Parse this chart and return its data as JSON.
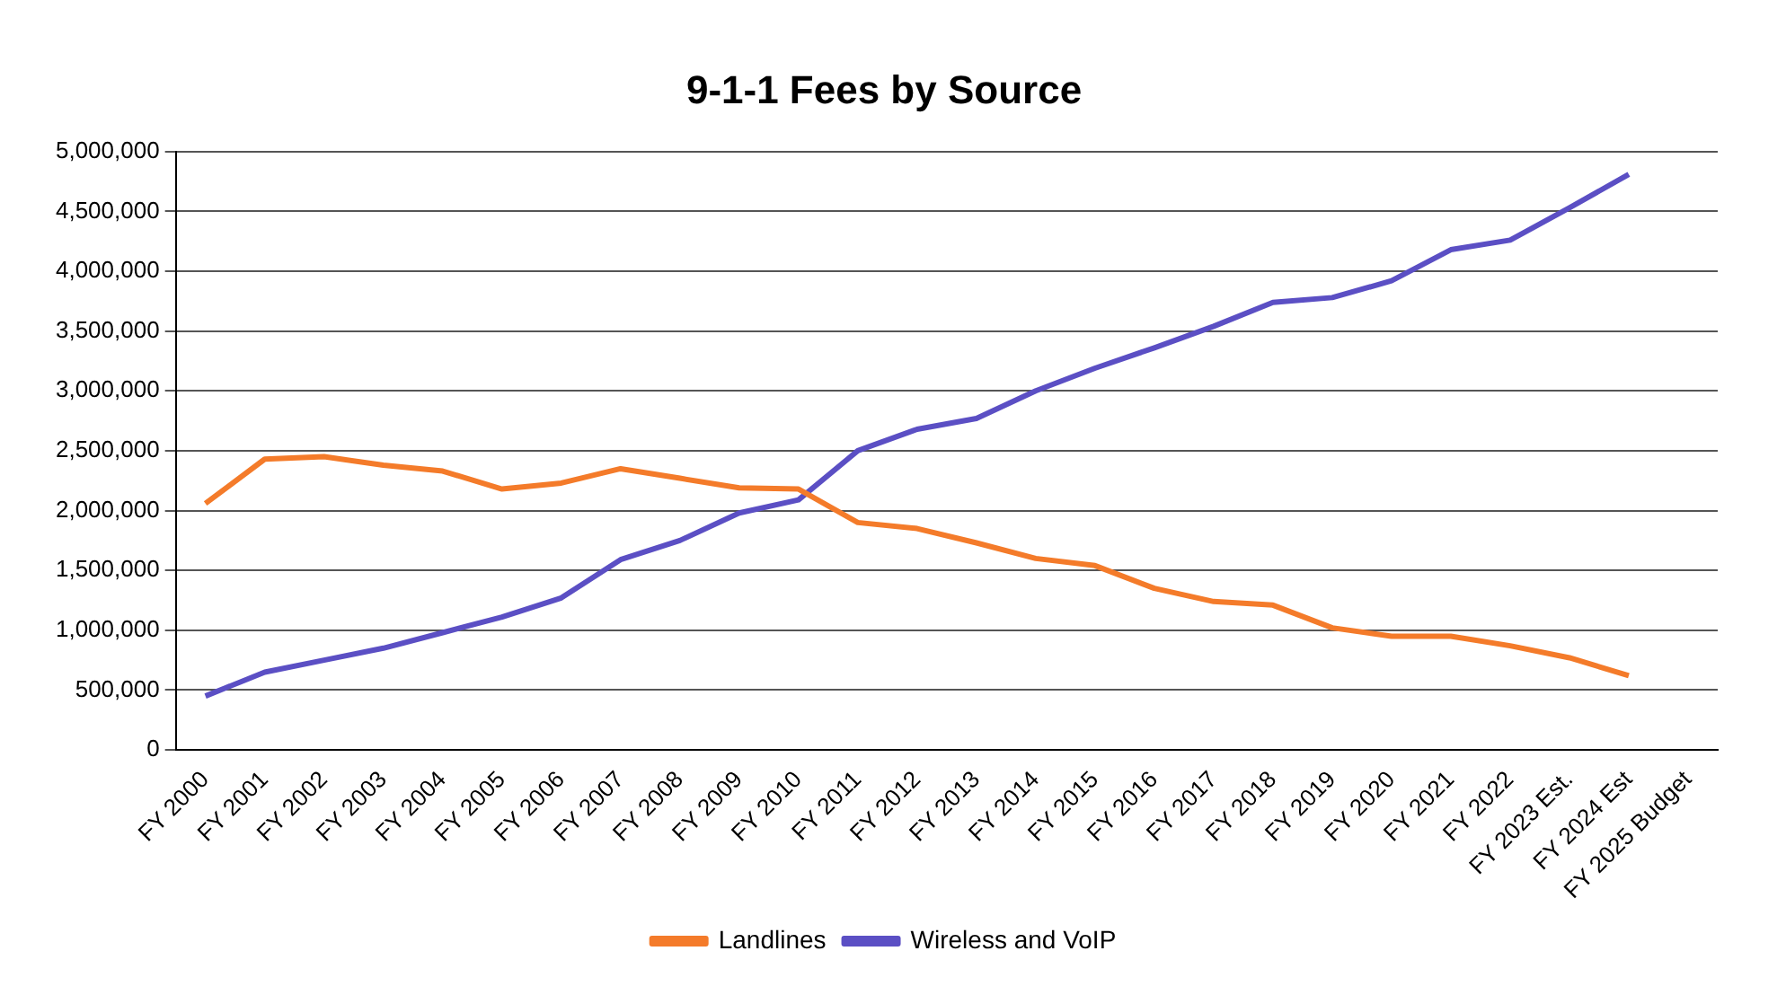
{
  "chart_data": {
    "type": "line",
    "title": "9-1-1 Fees by Source",
    "categories": [
      "FY 2000",
      "FY 2001",
      "FY 2002",
      "FY 2003",
      "FY 2004",
      "FY 2005",
      "FY 2006",
      "FY 2007",
      "FY 2008",
      "FY 2009",
      "FY 2010",
      "FY 2011",
      "FY 2012",
      "FY 2013",
      "FY 2014",
      "FY 2015",
      "FY 2016",
      "FY 2017",
      "FY 2018",
      "FY 2019",
      "FY 2020",
      "FY 2021",
      "FY 2022",
      "FY 2023 Est.",
      "FY 2024 Est",
      "FY 2025 Budget"
    ],
    "series": [
      {
        "name": "Landlines",
        "color": "#f47b2a",
        "values": [
          2060000,
          2430000,
          2450000,
          2380000,
          2330000,
          2180000,
          2230000,
          2350000,
          2270000,
          2190000,
          2180000,
          1900000,
          1850000,
          1730000,
          1600000,
          1540000,
          1350000,
          1240000,
          1210000,
          1020000,
          950000,
          950000,
          870000,
          770000,
          620000,
          null
        ]
      },
      {
        "name": "Wireless and VoIP",
        "color": "#5b4fc4",
        "values": [
          450000,
          650000,
          750000,
          850000,
          980000,
          1110000,
          1270000,
          1590000,
          1750000,
          1980000,
          2090000,
          2500000,
          2680000,
          2770000,
          3000000,
          3190000,
          3360000,
          3540000,
          3740000,
          3780000,
          3920000,
          4180000,
          4260000,
          4530000,
          4810000,
          null
        ]
      }
    ],
    "ylim": [
      0,
      5000000
    ],
    "yticks": [
      {
        "value": 0,
        "label": "0"
      },
      {
        "value": 500000,
        "label": "500,000"
      },
      {
        "value": 1000000,
        "label": "1,000,000"
      },
      {
        "value": 1500000,
        "label": "1,500,000"
      },
      {
        "value": 2000000,
        "label": "2,000,000"
      },
      {
        "value": 2500000,
        "label": "2,500,000"
      },
      {
        "value": 3000000,
        "label": "3,000,000"
      },
      {
        "value": 3500000,
        "label": "3,500,000"
      },
      {
        "value": 4000000,
        "label": "4,000,000"
      },
      {
        "value": 4500000,
        "label": "4,500,000"
      },
      {
        "value": 5000000,
        "label": "5,000,000"
      }
    ],
    "grid": "y",
    "legend": "bottom",
    "marker": "none",
    "line_style": "solid"
  }
}
